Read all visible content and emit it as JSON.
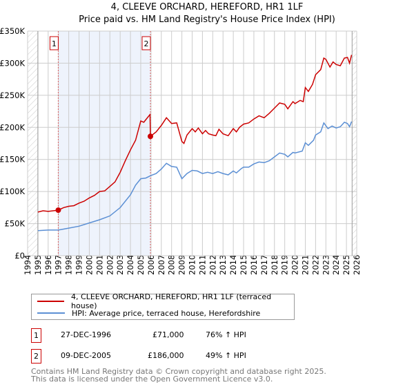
{
  "title": "4, CLEEVE ORCHARD, HEREFORD, HR1 1LF",
  "subtitle": "Price paid vs. HM Land Registry's House Price Index (HPI)",
  "colors": {
    "property": "#cc0000",
    "hpi": "#5b8fd4",
    "shade": "#eef3fc",
    "grid": "#cccccc"
  },
  "chart_data": {
    "type": "line",
    "title": "4, CLEEVE ORCHARD, HEREFORD, HR1 1LF",
    "xlim": [
      1994,
      2026
    ],
    "ylim": [
      0,
      350000
    ],
    "x_ticks": [
      "1994",
      "1995",
      "1996",
      "1997",
      "1998",
      "1999",
      "2000",
      "2001",
      "2002",
      "2003",
      "2004",
      "2005",
      "2006",
      "2007",
      "2008",
      "2009",
      "2010",
      "2011",
      "2012",
      "2013",
      "2014",
      "2015",
      "2016",
      "2017",
      "2018",
      "2019",
      "2020",
      "2021",
      "2022",
      "2023",
      "2024",
      "2025",
      "2026"
    ],
    "y_ticks": [
      {
        "v": 0,
        "label": "£0"
      },
      {
        "v": 50000,
        "label": "£50K"
      },
      {
        "v": 100000,
        "label": "£100K"
      },
      {
        "v": 150000,
        "label": "£150K"
      },
      {
        "v": 200000,
        "label": "£200K"
      },
      {
        "v": 250000,
        "label": "£250K"
      },
      {
        "v": 300000,
        "label": "£300K"
      },
      {
        "v": 350000,
        "label": "£350K"
      }
    ],
    "grid": true,
    "series": [
      {
        "name": "4, CLEEVE ORCHARD, HEREFORD, HR1 1LF (terraced house)",
        "color": "#cc0000",
        "points": [
          [
            1995.0,
            68000
          ],
          [
            1995.5,
            70000
          ],
          [
            1996.0,
            69000
          ],
          [
            1996.98,
            71000
          ],
          [
            1997.5,
            75000
          ],
          [
            1998.0,
            77000
          ],
          [
            1998.5,
            78000
          ],
          [
            1999.0,
            82000
          ],
          [
            1999.5,
            85000
          ],
          [
            2000.0,
            90000
          ],
          [
            2000.5,
            94000
          ],
          [
            2001.0,
            100000
          ],
          [
            2001.5,
            101000
          ],
          [
            2002.0,
            108000
          ],
          [
            2002.5,
            115000
          ],
          [
            2003.0,
            130000
          ],
          [
            2003.5,
            148000
          ],
          [
            2004.0,
            165000
          ],
          [
            2004.5,
            180000
          ],
          [
            2005.0,
            210000
          ],
          [
            2005.3,
            208000
          ],
          [
            2005.5,
            212000
          ],
          [
            2005.9,
            220000
          ],
          [
            2005.94,
            186000
          ],
          [
            2006.5,
            193000
          ],
          [
            2007.0,
            203000
          ],
          [
            2007.5,
            215000
          ],
          [
            2008.0,
            206000
          ],
          [
            2008.5,
            207000
          ],
          [
            2009.0,
            178000
          ],
          [
            2009.2,
            175000
          ],
          [
            2009.5,
            188000
          ],
          [
            2010.0,
            198000
          ],
          [
            2010.3,
            193000
          ],
          [
            2010.6,
            199000
          ],
          [
            2011.0,
            190000
          ],
          [
            2011.3,
            195000
          ],
          [
            2011.6,
            190000
          ],
          [
            2012.0,
            188000
          ],
          [
            2012.3,
            187000
          ],
          [
            2012.6,
            197000
          ],
          [
            2013.0,
            190000
          ],
          [
            2013.5,
            187000
          ],
          [
            2014.0,
            198000
          ],
          [
            2014.3,
            193000
          ],
          [
            2014.6,
            200000
          ],
          [
            2015.0,
            205000
          ],
          [
            2015.5,
            207000
          ],
          [
            2016.0,
            213000
          ],
          [
            2016.5,
            218000
          ],
          [
            2017.0,
            215000
          ],
          [
            2017.5,
            222000
          ],
          [
            2018.0,
            230000
          ],
          [
            2018.5,
            238000
          ],
          [
            2019.0,
            236000
          ],
          [
            2019.3,
            229000
          ],
          [
            2019.8,
            240000
          ],
          [
            2020.0,
            237000
          ],
          [
            2020.5,
            242000
          ],
          [
            2020.8,
            240000
          ],
          [
            2021.0,
            262000
          ],
          [
            2021.3,
            256000
          ],
          [
            2021.7,
            267000
          ],
          [
            2022.0,
            282000
          ],
          [
            2022.5,
            290000
          ],
          [
            2022.8,
            308000
          ],
          [
            2023.0,
            306000
          ],
          [
            2023.4,
            294000
          ],
          [
            2023.7,
            302000
          ],
          [
            2024.0,
            298000
          ],
          [
            2024.4,
            296000
          ],
          [
            2024.8,
            308000
          ],
          [
            2025.1,
            309000
          ],
          [
            2025.3,
            300000
          ],
          [
            2025.5,
            313000
          ]
        ]
      },
      {
        "name": "HPI: Average price, terraced house, Herefordshire",
        "color": "#5b8fd4",
        "points": [
          [
            1995.0,
            39000
          ],
          [
            1996.0,
            40000
          ],
          [
            1997.0,
            40000
          ],
          [
            1998.0,
            43000
          ],
          [
            1999.0,
            46000
          ],
          [
            2000.0,
            51000
          ],
          [
            2001.0,
            56000
          ],
          [
            2002.0,
            62000
          ],
          [
            2003.0,
            75000
          ],
          [
            2004.0,
            95000
          ],
          [
            2004.5,
            110000
          ],
          [
            2005.0,
            120000
          ],
          [
            2005.5,
            121000
          ],
          [
            2006.0,
            125000
          ],
          [
            2006.5,
            128000
          ],
          [
            2007.0,
            135000
          ],
          [
            2007.5,
            144000
          ],
          [
            2008.0,
            139000
          ],
          [
            2008.5,
            138000
          ],
          [
            2009.0,
            120000
          ],
          [
            2009.5,
            128000
          ],
          [
            2010.0,
            133000
          ],
          [
            2010.5,
            132000
          ],
          [
            2011.0,
            128000
          ],
          [
            2011.5,
            130000
          ],
          [
            2012.0,
            128000
          ],
          [
            2012.5,
            131000
          ],
          [
            2013.0,
            128000
          ],
          [
            2013.5,
            126000
          ],
          [
            2014.0,
            132000
          ],
          [
            2014.3,
            129000
          ],
          [
            2014.8,
            136000
          ],
          [
            2015.0,
            138000
          ],
          [
            2015.5,
            138000
          ],
          [
            2016.0,
            143000
          ],
          [
            2016.5,
            146000
          ],
          [
            2017.0,
            145000
          ],
          [
            2017.5,
            148000
          ],
          [
            2018.0,
            154000
          ],
          [
            2018.5,
            160000
          ],
          [
            2019.0,
            158000
          ],
          [
            2019.3,
            154000
          ],
          [
            2019.8,
            161000
          ],
          [
            2020.0,
            160000
          ],
          [
            2020.7,
            163000
          ],
          [
            2021.0,
            176000
          ],
          [
            2021.3,
            172000
          ],
          [
            2021.8,
            180000
          ],
          [
            2022.0,
            188000
          ],
          [
            2022.5,
            193000
          ],
          [
            2022.8,
            207000
          ],
          [
            2023.2,
            198000
          ],
          [
            2023.6,
            202000
          ],
          [
            2024.0,
            199000
          ],
          [
            2024.4,
            201000
          ],
          [
            2024.8,
            208000
          ],
          [
            2025.1,
            206000
          ],
          [
            2025.3,
            201000
          ],
          [
            2025.5,
            209000
          ]
        ]
      }
    ],
    "annotations": [
      {
        "label": "1",
        "x": 1996.98,
        "y": 71000
      },
      {
        "label": "2",
        "x": 2005.94,
        "y": 186000
      }
    ],
    "hatched_ranges": [
      [
        1994,
        1995
      ],
      [
        2025.55,
        2026
      ]
    ],
    "legend": "bottom"
  },
  "legend": {
    "property": "4, CLEEVE ORCHARD, HEREFORD, HR1 1LF (terraced house)",
    "hpi": "HPI: Average price, terraced house, Herefordshire"
  },
  "sales": [
    {
      "num": "1",
      "date": "27-DEC-1996",
      "price": "£71,000",
      "hpi": "76% ↑ HPI"
    },
    {
      "num": "2",
      "date": "09-DEC-2005",
      "price": "£186,000",
      "hpi": "49% ↑ HPI"
    }
  ],
  "footer": {
    "line1": "Contains HM Land Registry data © Crown copyright and database right 2025.",
    "line2": "This data is licensed under the Open Government Licence v3.0."
  }
}
